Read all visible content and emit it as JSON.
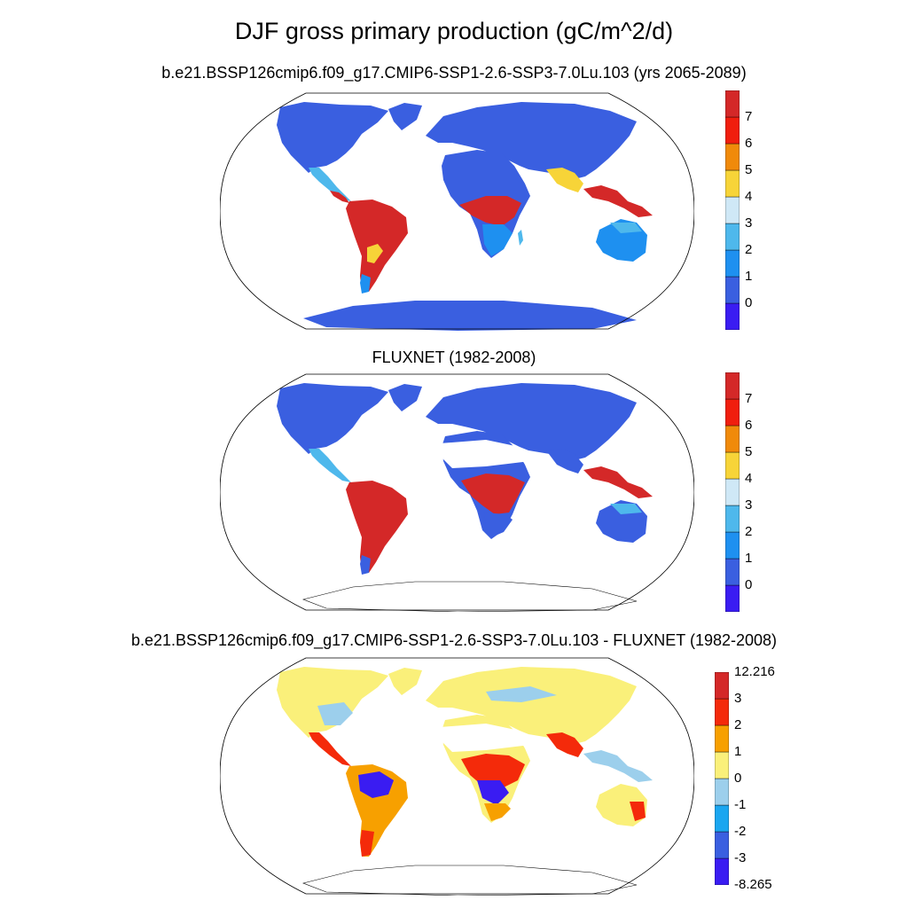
{
  "figure": {
    "title": "DJF gross primary production (gC/m^2/d)"
  },
  "panels": [
    {
      "id": "model",
      "title": "b.e21.BSSP126cmip6.f09_g17.CMIP6-SSP1-2.6-SSP3-7.0Lu.103 (yrs 2065-2089)",
      "colorbar": {
        "colors": [
          "#3a1cf2",
          "#3a5fe0",
          "#1e90f0",
          "#4eb8ec",
          "#cfe8f6",
          "#f7d438",
          "#f08a0a",
          "#f01e0e",
          "#d42828"
        ],
        "labels": [
          "0",
          "1",
          "2",
          "3",
          "4",
          "5",
          "6",
          "7"
        ]
      }
    },
    {
      "id": "obs",
      "title": "FLUXNET (1982-2008)",
      "colorbar": {
        "colors": [
          "#3a1cf2",
          "#3a5fe0",
          "#1e90f0",
          "#4eb8ec",
          "#cfe8f6",
          "#f7d438",
          "#f08a0a",
          "#f01e0e",
          "#d42828"
        ],
        "labels": [
          "0",
          "1",
          "2",
          "3",
          "4",
          "5",
          "6",
          "7"
        ]
      }
    },
    {
      "id": "diff",
      "title": "b.e21.BSSP126cmip6.f09_g17.CMIP6-SSP1-2.6-SSP3-7.0Lu.103 - FLUXNET (1982-2008)",
      "colorbar": {
        "colors": [
          "#3a1cf2",
          "#3a5fe0",
          "#1aa6f0",
          "#9ccfec",
          "#faf07a",
          "#f7a000",
          "#f42a0a",
          "#d42828"
        ],
        "labels": [
          "-8.265",
          "-3",
          "-2",
          "-1",
          "0",
          "1",
          "2",
          "3",
          "12.216"
        ]
      }
    }
  ],
  "palette": {
    "ocean": "#ffffff",
    "coast": "#000000",
    "antarctica_model": "#3a5fe0"
  }
}
